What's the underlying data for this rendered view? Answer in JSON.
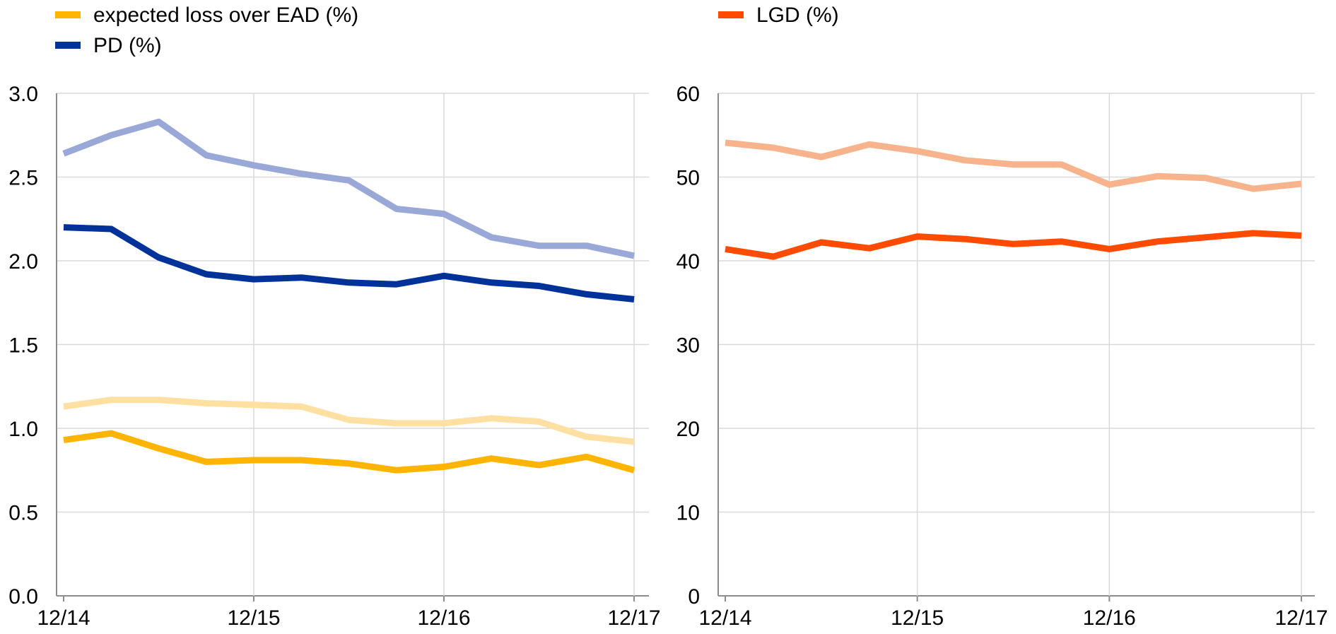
{
  "chart_data": [
    {
      "type": "line",
      "title": "",
      "xlabel": "",
      "ylabel": "",
      "ylim": [
        0,
        3.0
      ],
      "yticks": [
        "0.0",
        "0.5",
        "1.0",
        "1.5",
        "2.0",
        "2.5",
        "3.0"
      ],
      "x_ticks": [
        "12/14",
        "12/15",
        "12/16",
        "12/17"
      ],
      "x": [
        "12/14",
        "03/15",
        "06/15",
        "09/15",
        "12/15",
        "03/16",
        "06/16",
        "09/16",
        "12/16",
        "03/17",
        "06/17",
        "09/17",
        "12/17"
      ],
      "grid": "vertical and horizontal",
      "legend_position": "top-left",
      "legend": [
        {
          "label": "expected loss over EAD (%)",
          "color": "#FFB400"
        },
        {
          "label": "PD (%)",
          "color": "#003299"
        }
      ],
      "series": [
        {
          "name": "PD (%)",
          "color": "#003299",
          "values": [
            2.2,
            2.19,
            2.02,
            1.92,
            1.89,
            1.9,
            1.87,
            1.86,
            1.91,
            1.87,
            1.85,
            1.8,
            1.77
          ]
        },
        {
          "color": "#99A8D6",
          "values": [
            2.64,
            2.75,
            2.83,
            2.63,
            2.57,
            2.52,
            2.48,
            2.31,
            2.28,
            2.14,
            2.09,
            2.09,
            2.03
          ]
        },
        {
          "name": "expected loss over EAD (%)",
          "color": "#FFB400",
          "values": [
            0.93,
            0.97,
            0.88,
            0.8,
            0.81,
            0.81,
            0.79,
            0.75,
            0.77,
            0.82,
            0.78,
            0.83,
            0.75
          ]
        },
        {
          "color": "#FFE0A3",
          "values": [
            1.13,
            1.17,
            1.17,
            1.15,
            1.14,
            1.13,
            1.05,
            1.03,
            1.03,
            1.06,
            1.04,
            0.95,
            0.92
          ]
        }
      ]
    },
    {
      "type": "line",
      "title": "",
      "xlabel": "",
      "ylabel": "",
      "ylim": [
        0,
        60
      ],
      "yticks": [
        "0",
        "10",
        "20",
        "30",
        "40",
        "50",
        "60"
      ],
      "x_ticks": [
        "12/14",
        "12/15",
        "12/16",
        "12/17"
      ],
      "x": [
        "12/14",
        "03/15",
        "06/15",
        "09/15",
        "12/15",
        "03/16",
        "06/16",
        "09/16",
        "12/16",
        "03/17",
        "06/17",
        "09/17",
        "12/17"
      ],
      "grid": "vertical and horizontal",
      "legend_position": "top-left",
      "legend": [
        {
          "label": "LGD (%)",
          "color": "#FF4B00"
        }
      ],
      "series": [
        {
          "name": "LGD (%)",
          "color": "#FF4B00",
          "values": [
            41.4,
            40.5,
            42.2,
            41.5,
            42.9,
            42.6,
            42.0,
            42.3,
            41.4,
            42.3,
            42.8,
            43.3,
            43.0
          ]
        },
        {
          "color": "#F7B38B",
          "values": [
            54.1,
            53.5,
            52.4,
            53.9,
            53.1,
            52.0,
            51.5,
            51.5,
            49.1,
            50.1,
            49.9,
            48.6,
            49.2
          ]
        }
      ]
    }
  ]
}
